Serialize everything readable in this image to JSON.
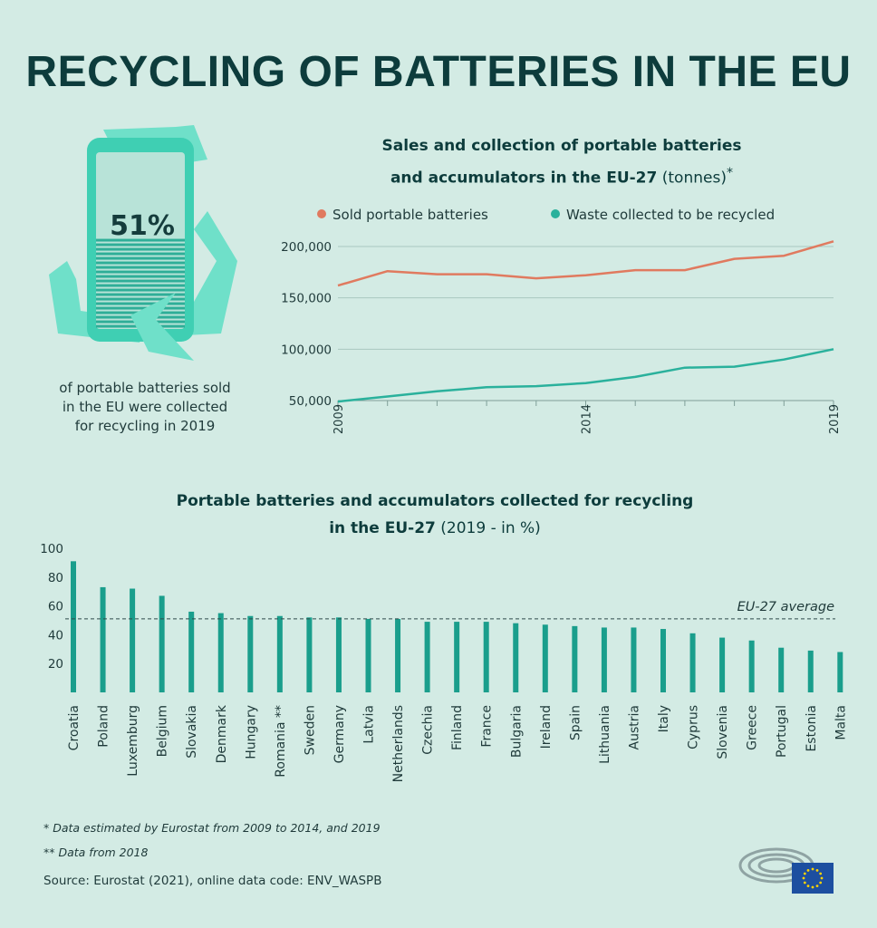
{
  "title": "RECYCLING OF BATTERIES IN THE EU",
  "stat": {
    "value": "51%",
    "caption_lines": [
      "of portable batteries sold",
      "in the EU were collected",
      "for recycling in 2019"
    ],
    "fill_fraction": 0.51,
    "icon": "battery-recycle-icon"
  },
  "colors": {
    "background": "#d3ebe4",
    "sold": "#e07a5f",
    "waste": "#2ab19c",
    "bar": "#1a9e8c",
    "title": "#0d3c3c",
    "eu_flag": "#1d4fa0",
    "eu_stars": "#ffd400"
  },
  "footnotes": {
    "estimated": "* Data estimated by Eurostat from 2009 to 2014, and 2019",
    "from_2018": "** Data from 2018"
  },
  "source": "Source: Eurostat (2021), online data code: ENV_WASPB",
  "logo": "european-parliament-logo",
  "chart_data": [
    {
      "type": "line",
      "title_bold_1": "Sales and collection of portable batteries",
      "title_bold_2": "and accumulators in the EU-27",
      "title_suffix": "(tonnes)",
      "title_mark": "*",
      "x": [
        2009,
        2010,
        2011,
        2012,
        2013,
        2014,
        2015,
        2016,
        2017,
        2018,
        2019
      ],
      "x_tick_labels": [
        "2009",
        "2014",
        "2019"
      ],
      "y_ticks": [
        "50,000",
        "100,000",
        "150,000",
        "200,000"
      ],
      "ylim": [
        50000,
        200000
      ],
      "grid": true,
      "legend_position": "top",
      "series": [
        {
          "name": "Sold portable batteries",
          "values": [
            162000,
            176000,
            173000,
            173000,
            169000,
            172000,
            177000,
            177000,
            188000,
            191000,
            205000
          ]
        },
        {
          "name": "Waste collected to be recycled",
          "values": [
            49000,
            54000,
            59000,
            63000,
            64000,
            67000,
            73000,
            82000,
            83000,
            90000,
            100000
          ]
        }
      ]
    },
    {
      "type": "bar",
      "title_bold_1": "Portable batteries and accumulators collected for recycling",
      "title_bold_2": "in the EU-27",
      "title_suffix": "(2019 - in %)",
      "categories": [
        "Croatia",
        "Poland",
        "Luxemburg",
        "Belgium",
        "Slovakia",
        "Denmark",
        "Hungary",
        "Romania **",
        "Sweden",
        "Germany",
        "Latvia",
        "Netherlands",
        "Czechia",
        "Finland",
        "France",
        "Bulgaria",
        "Ireland",
        "Spain",
        "Lithuania",
        "Austria",
        "Italy",
        "Cyprus",
        "Slovenia",
        "Greece",
        "Portugal",
        "Estonia",
        "Malta"
      ],
      "values": [
        91,
        73,
        72,
        67,
        56,
        55,
        53,
        53,
        52,
        52,
        51,
        51,
        49,
        49,
        49,
        48,
        47,
        46,
        45,
        45,
        44,
        41,
        38,
        36,
        31,
        29,
        28
      ],
      "y_ticks": [
        "20",
        "40",
        "60",
        "80",
        "100"
      ],
      "ylim": [
        0,
        100
      ],
      "reference_line": {
        "label": "EU-27 average",
        "value": 51
      }
    }
  ]
}
